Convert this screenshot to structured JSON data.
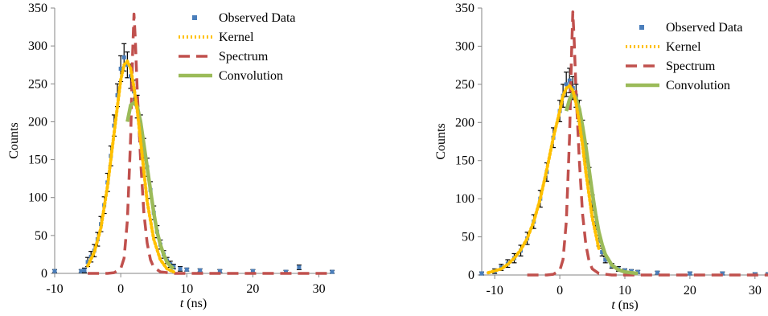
{
  "figure": {
    "colors": {
      "observed": "#4a7ebb",
      "errorbar": "#000000",
      "kernel": "#ffc000",
      "spectrum": "#c0504d",
      "convolution": "#9bbb59",
      "axis": "#868686"
    }
  },
  "chart_data": [
    {
      "type": "line",
      "title": "",
      "xlabel_italic": "t",
      "xlabel_unit": " (ns)",
      "ylabel": "Counts",
      "xlim": [
        -10,
        32
      ],
      "ylim": [
        0,
        350
      ],
      "xticks": [
        -10,
        0,
        10,
        20,
        30
      ],
      "yticks": [
        0,
        50,
        100,
        150,
        200,
        250,
        300,
        350
      ],
      "grid": false,
      "legend_position": "top-right",
      "observed": {
        "name": "Observed Data",
        "x": [
          -10,
          -6,
          -5.5,
          -5,
          -4.5,
          -4,
          -3.5,
          -3,
          -2.5,
          -2,
          -1.5,
          -1,
          -0.5,
          0,
          0.5,
          1,
          1.5,
          2,
          2.5,
          3,
          3.5,
          4,
          4.5,
          5,
          5.5,
          6,
          6.5,
          7,
          7.5,
          8,
          9,
          10,
          12,
          15,
          20,
          25,
          27,
          32
        ],
        "y": [
          3,
          3,
          4,
          15,
          22,
          30,
          45,
          65,
          90,
          120,
          155,
          195,
          235,
          270,
          285,
          275,
          260,
          240,
          220,
          195,
          165,
          140,
          110,
          80,
          55,
          38,
          25,
          17,
          12,
          9,
          6,
          5,
          4,
          3,
          3,
          2,
          8,
          2
        ],
        "err": [
          2,
          2,
          3,
          6,
          7,
          8,
          9,
          10,
          11,
          12,
          13,
          14,
          15,
          17,
          18,
          17,
          16,
          15,
          15,
          14,
          13,
          12,
          11,
          9,
          8,
          6,
          5,
          4,
          4,
          3,
          3,
          2,
          2,
          2,
          2,
          2,
          3,
          2
        ]
      },
      "kernel": {
        "name": "Kernel",
        "x": [
          -5,
          -4,
          -3,
          -2,
          -1,
          0,
          0.5,
          1,
          1.5,
          2,
          2.5,
          3,
          3.5,
          4,
          5,
          6,
          7,
          8
        ],
        "y": [
          10,
          28,
          60,
          115,
          185,
          255,
          275,
          280,
          270,
          245,
          215,
          175,
          135,
          95,
          45,
          18,
          6,
          2
        ]
      },
      "spectrum": {
        "name": "Spectrum",
        "x": [
          -5,
          -2,
          -1,
          0,
          0.5,
          1,
          1.5,
          1.8,
          2,
          2.2,
          2.5,
          3,
          3.5,
          4,
          4.5,
          5,
          6,
          8,
          15,
          32
        ],
        "y": [
          0,
          0,
          1,
          6,
          20,
          70,
          180,
          290,
          342,
          310,
          240,
          150,
          80,
          40,
          18,
          8,
          2,
          0,
          0,
          0
        ]
      },
      "convolution": {
        "name": "Convolution",
        "x": [
          1,
          1.5,
          2,
          2.5,
          3,
          3.5,
          4,
          4.5,
          5,
          5.5,
          6,
          6.5,
          7,
          7.5,
          8
        ],
        "y": [
          200,
          222,
          225,
          220,
          200,
          170,
          140,
          110,
          80,
          55,
          38,
          25,
          15,
          10,
          6
        ]
      },
      "legend": [
        "Observed Data",
        "Kernel",
        "Spectrum",
        "Convolution"
      ]
    },
    {
      "type": "line",
      "title": "",
      "xlabel_italic": "t",
      "xlabel_unit": " (ns)",
      "ylabel": "Counts",
      "xlim": [
        -12,
        32
      ],
      "ylim": [
        0,
        350
      ],
      "xticks": [
        -10,
        0,
        10,
        20,
        30
      ],
      "yticks": [
        0,
        50,
        100,
        150,
        200,
        250,
        300,
        350
      ],
      "grid": false,
      "legend_position": "top-right",
      "observed": {
        "name": "Observed Data",
        "x": [
          -12,
          -10,
          -9,
          -8,
          -7,
          -6,
          -5,
          -4,
          -3,
          -2,
          -1,
          0,
          0.5,
          1,
          1.5,
          2,
          2.5,
          3,
          3.5,
          4,
          4.5,
          5,
          5.5,
          6,
          6.5,
          7,
          8,
          9,
          10,
          11,
          12,
          15,
          20,
          25,
          30,
          32
        ],
        "y": [
          2,
          5,
          10,
          15,
          22,
          32,
          48,
          70,
          100,
          135,
          180,
          215,
          235,
          250,
          255,
          245,
          235,
          215,
          190,
          160,
          130,
          95,
          68,
          45,
          30,
          20,
          12,
          8,
          6,
          5,
          4,
          3,
          2,
          2,
          1,
          1
        ],
        "err": [
          2,
          3,
          4,
          5,
          6,
          7,
          8,
          9,
          11,
          12,
          13,
          14,
          15,
          16,
          16,
          15,
          15,
          14,
          13,
          12,
          11,
          10,
          8,
          7,
          5,
          4,
          3,
          3,
          2,
          2,
          2,
          2,
          2,
          2,
          2,
          2
        ]
      },
      "kernel": {
        "name": "Kernel",
        "x": [
          -11,
          -9,
          -8,
          -7,
          -6,
          -5,
          -4,
          -3,
          -2,
          -1,
          0,
          0.5,
          1,
          1.5,
          2,
          2.5,
          3,
          3.5,
          4,
          5,
          6
        ],
        "y": [
          3,
          8,
          14,
          22,
          33,
          48,
          70,
          100,
          138,
          180,
          215,
          235,
          245,
          248,
          242,
          225,
          200,
          170,
          135,
          75,
          35
        ]
      },
      "spectrum": {
        "name": "Spectrum",
        "x": [
          -5,
          -2,
          -1,
          0,
          0.5,
          1,
          1.5,
          1.8,
          2,
          2.2,
          2.5,
          3,
          3.5,
          4,
          4.5,
          5,
          6,
          8,
          15,
          32
        ],
        "y": [
          0,
          0,
          1,
          6,
          20,
          70,
          180,
          290,
          345,
          310,
          240,
          150,
          80,
          40,
          18,
          8,
          2,
          0,
          0,
          0
        ]
      },
      "convolution": {
        "name": "Convolution",
        "x": [
          1,
          1.5,
          2,
          2.5,
          3,
          3.5,
          4,
          4.5,
          5,
          5.5,
          6,
          6.5,
          7,
          8,
          9,
          10,
          11,
          12
        ],
        "y": [
          215,
          230,
          238,
          232,
          218,
          195,
          168,
          138,
          108,
          80,
          57,
          40,
          27,
          13,
          7,
          4,
          3,
          2
        ]
      },
      "legend": [
        "Observed Data",
        "Kernel",
        "Spectrum",
        "Convolution"
      ]
    }
  ]
}
